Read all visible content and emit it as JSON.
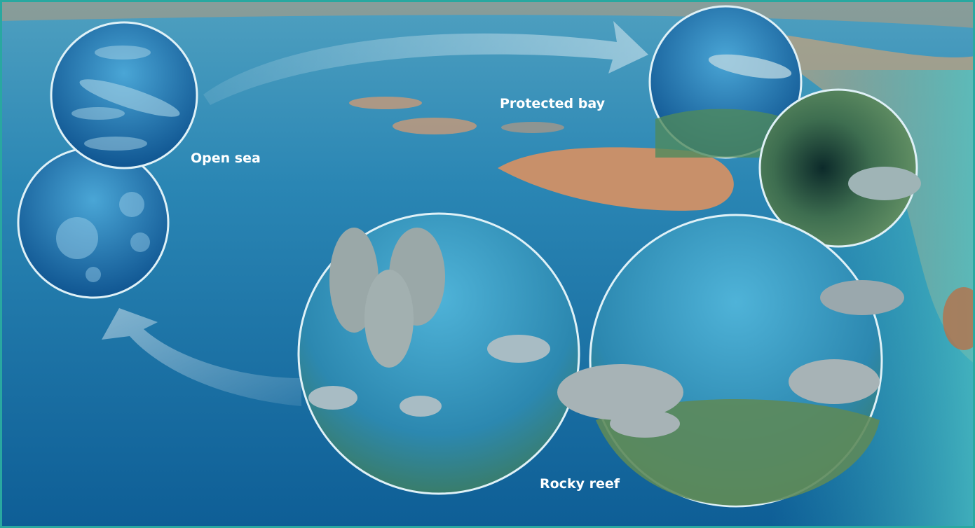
{
  "nodes": [
    {
      "label": "Open sea"
    },
    {
      "label": "Protected bay"
    },
    {
      "label": "Rocky reef"
    }
  ]
}
